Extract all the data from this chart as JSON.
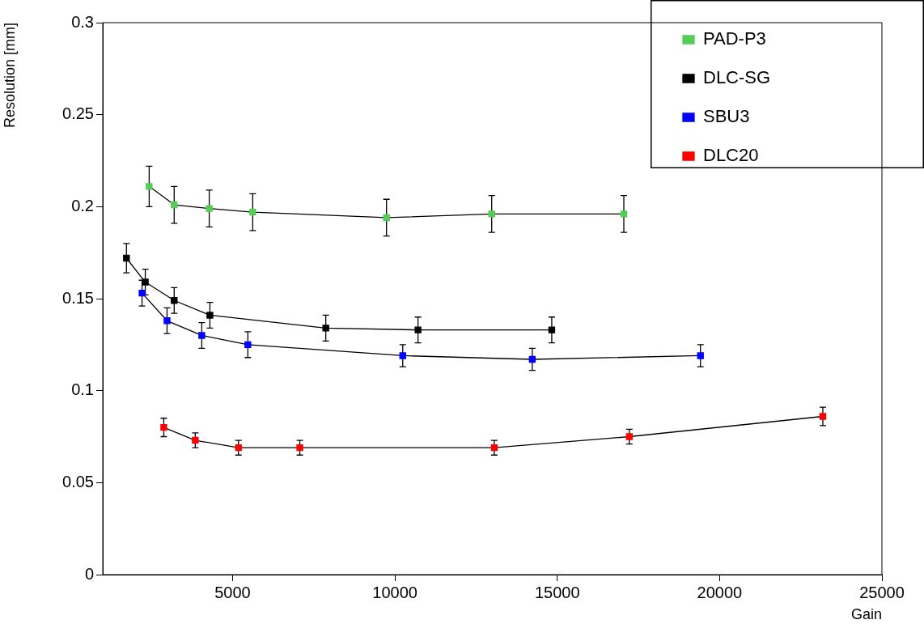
{
  "chart_data": {
    "type": "line",
    "xlabel": "Gain",
    "ylabel": "Resolution [mm]",
    "xlim": [
      1000,
      25000
    ],
    "xticks": [
      5000,
      10000,
      15000,
      20000,
      25000
    ],
    "ylim": [
      0,
      0.3
    ],
    "yticks": [
      0,
      0.05,
      0.1,
      0.15,
      0.2,
      0.25,
      0.3
    ],
    "grid": false,
    "legend": "top right",
    "marker": "square",
    "line_style": "solid",
    "series": [
      {
        "name": "PAD-P3",
        "color": "#55cc55",
        "x": [
          2430,
          3200,
          4280,
          5620,
          9740,
          12980,
          17050
        ],
        "values": [
          0.211,
          0.201,
          0.199,
          0.197,
          0.194,
          0.196,
          0.196
        ],
        "errors": [
          0.011,
          0.01,
          0.01,
          0.01,
          0.01,
          0.01,
          0.01
        ]
      },
      {
        "name": "DLC-SG",
        "color": "#000000",
        "x": [
          1730,
          2310,
          3200,
          4300,
          7870,
          10710,
          14830
        ],
        "values": [
          0.172,
          0.159,
          0.149,
          0.141,
          0.134,
          0.133,
          0.133
        ],
        "errors": [
          0.008,
          0.007,
          0.007,
          0.007,
          0.007,
          0.007,
          0.007
        ]
      },
      {
        "name": "SBU3",
        "color": "#0000ff",
        "x": [
          2210,
          2980,
          4050,
          5470,
          10240,
          14230,
          19410
        ],
        "values": [
          0.153,
          0.138,
          0.13,
          0.125,
          0.119,
          0.117,
          0.119
        ],
        "errors": [
          0.007,
          0.007,
          0.007,
          0.007,
          0.006,
          0.006,
          0.006
        ]
      },
      {
        "name": "DLC20",
        "color": "#ff0000",
        "x": [
          2880,
          3850,
          5180,
          7070,
          13060,
          17220,
          23180
        ],
        "values": [
          0.08,
          0.073,
          0.069,
          0.069,
          0.069,
          0.075,
          0.086
        ],
        "errors": [
          0.005,
          0.004,
          0.004,
          0.004,
          0.004,
          0.004,
          0.005
        ]
      }
    ]
  }
}
